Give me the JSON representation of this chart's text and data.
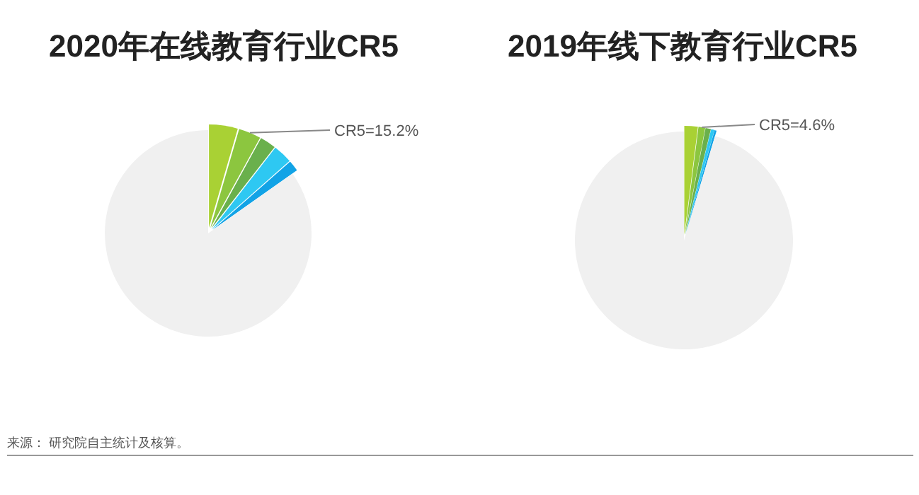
{
  "chart_data": [
    {
      "type": "pie",
      "title": "2020年在线教育行业CR5",
      "categories": [
        null,
        null,
        null,
        null,
        null,
        null
      ],
      "values": [
        4.5,
        3.5,
        2.5,
        3.0,
        1.7,
        84.8
      ],
      "colors": [
        "#a9d134",
        "#8cc63f",
        "#6ab04c",
        "#2ec8f2",
        "#12a3e6",
        "#f0f0f0"
      ],
      "annotations": [
        "CR5=15.2%",
        "来源： 研究院自主统计及核算。"
      ]
    },
    {
      "type": "pie",
      "title": "2019年线下教育行业CR5",
      "categories": [
        null,
        null,
        null,
        null,
        null,
        null
      ],
      "values": [
        2.0,
        1.0,
        0.8,
        0.5,
        0.3,
        95.4
      ],
      "colors": [
        "#a9d134",
        "#8cc63f",
        "#6ab04c",
        "#2ec8f2",
        "#12a3e6",
        "#f0f0f0"
      ],
      "annotations": [
        "CR5=4.6%"
      ]
    }
  ]
}
